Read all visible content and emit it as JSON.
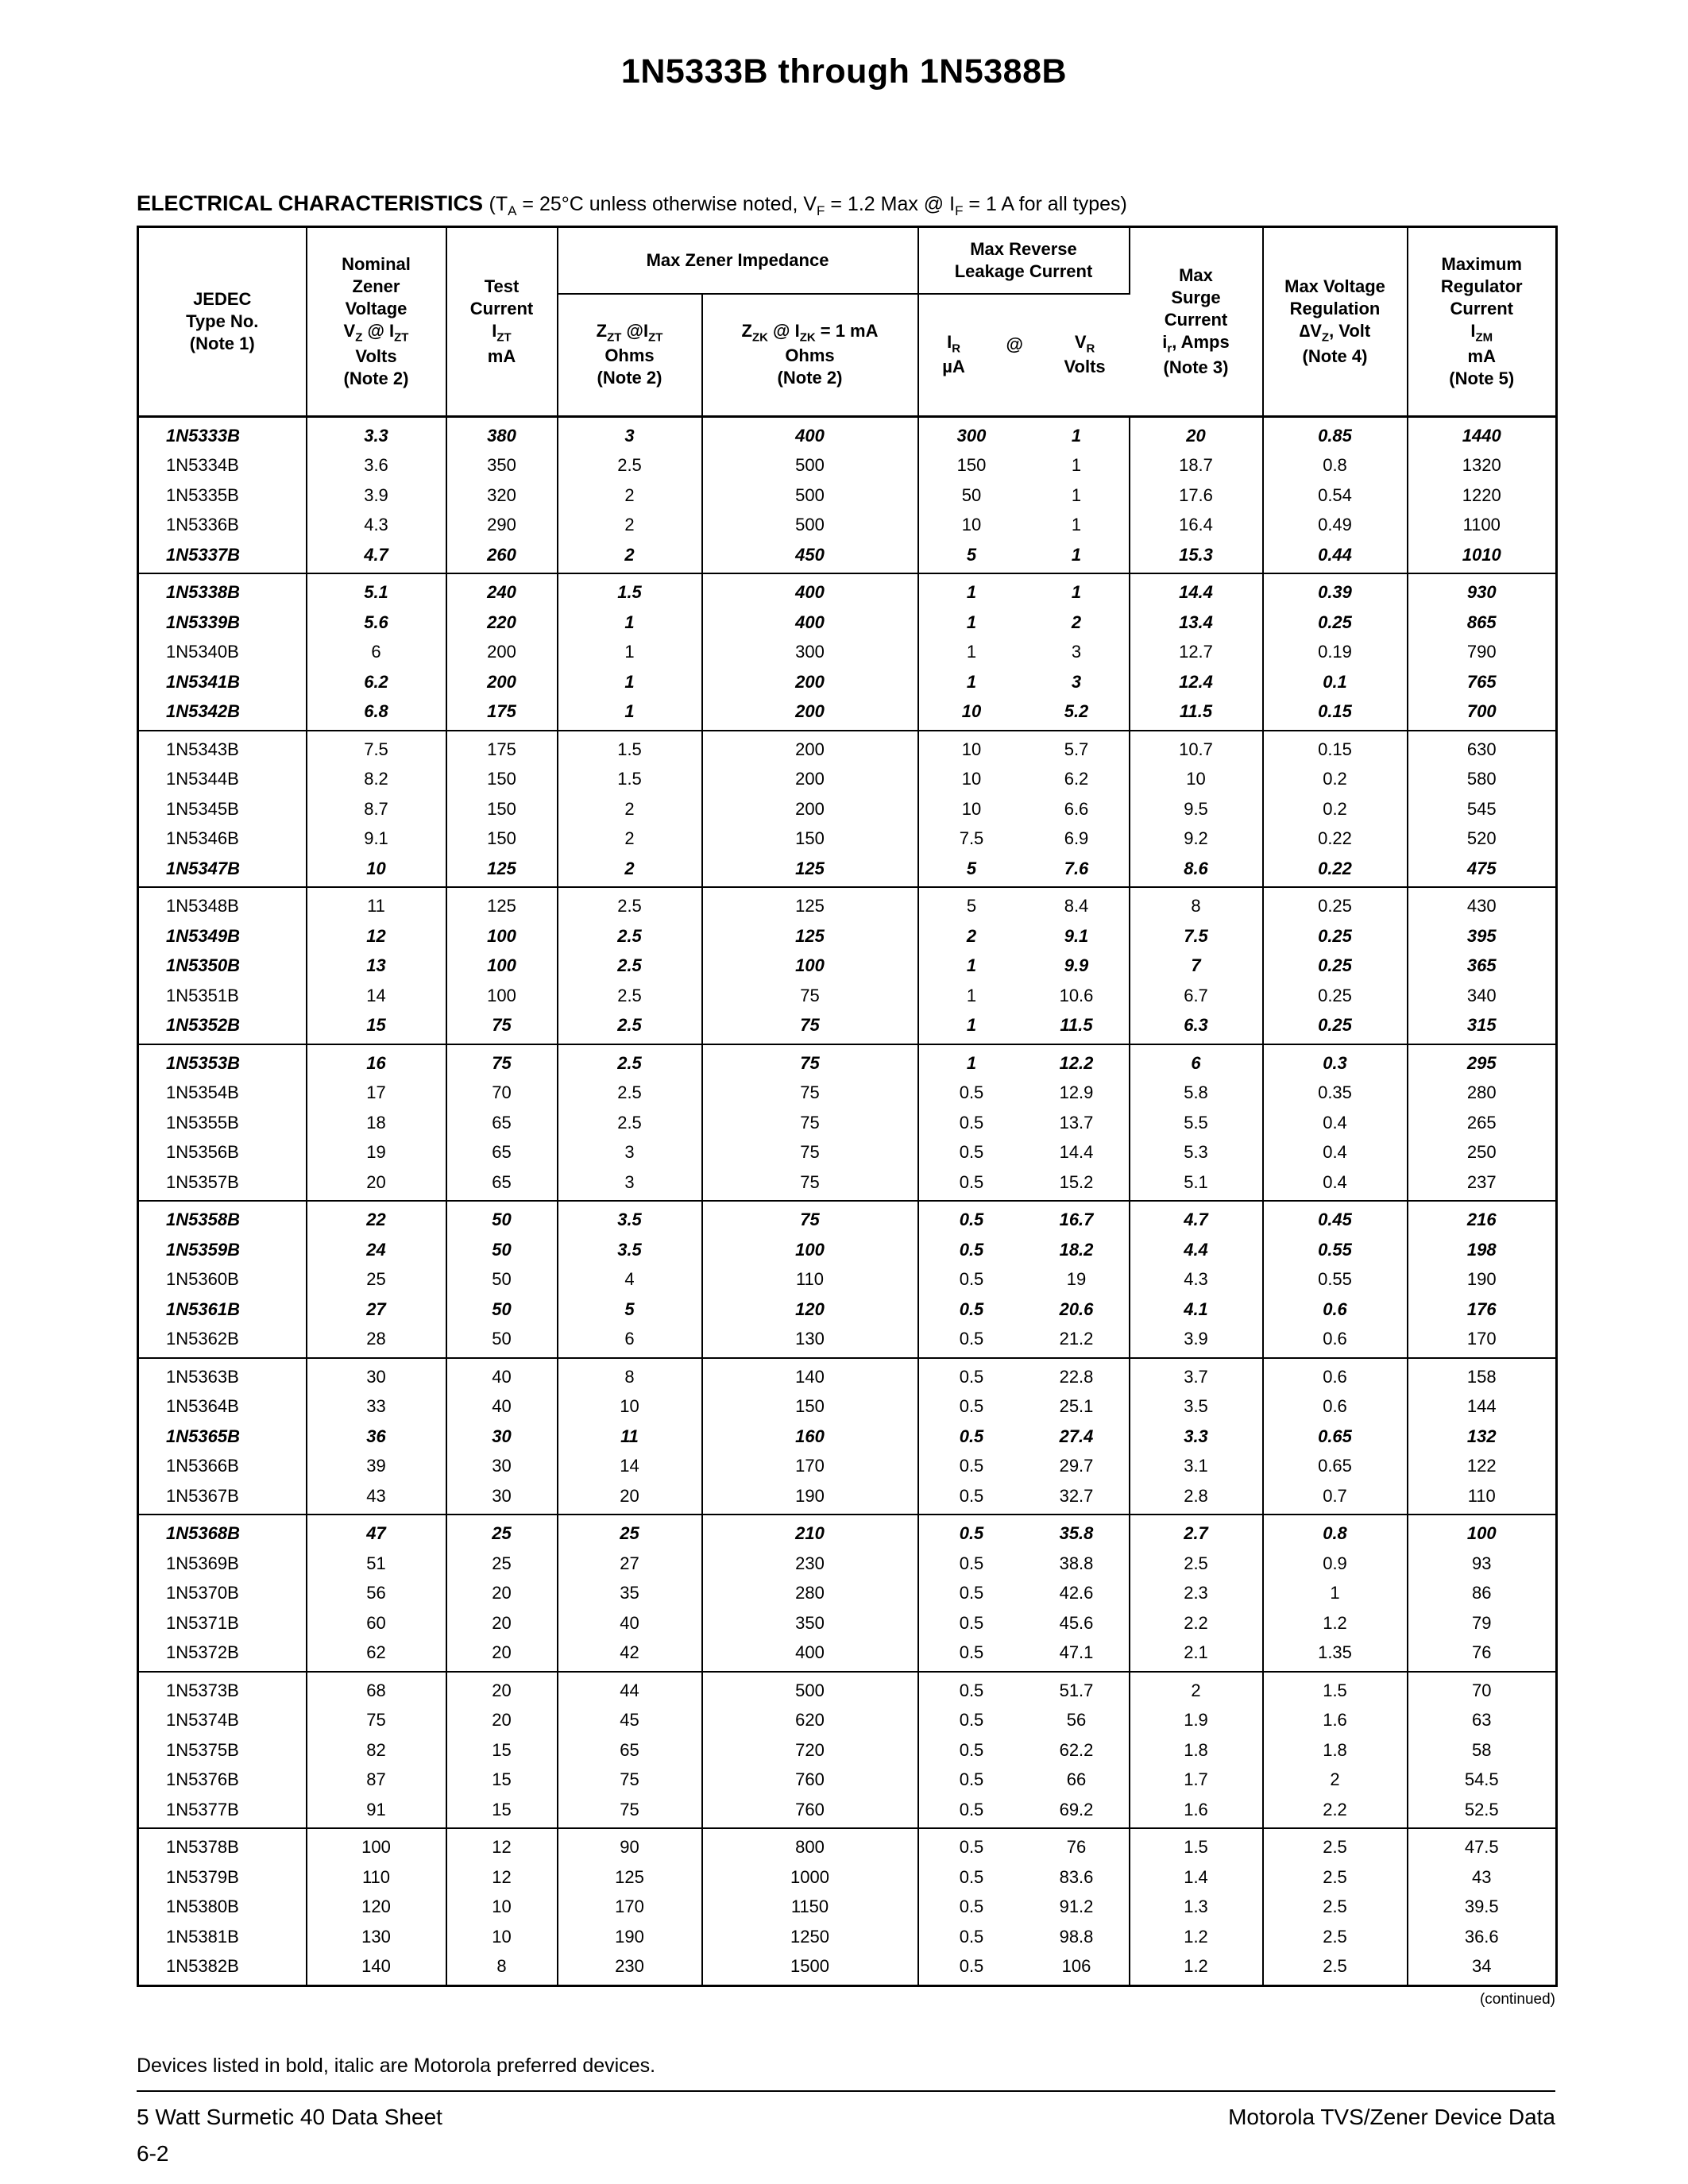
{
  "page": {
    "title": "1N5333B through 1N5388B",
    "section_heading": "ELECTRICAL CHARACTERISTICS ",
    "section_condition": "(T~A~ = 25°C unless otherwise noted, V~F~ = 1.2 Max @ I~F~ = 1 A for all types)",
    "continued": "(continued)",
    "note_bold": "Devices listed in bold, italic are Motorola preferred devices.",
    "footer_left": "5 Watt Surmetic 40 Data Sheet",
    "footer_right": "Motorola TVS/Zener Device Data",
    "page_number": "6-2"
  },
  "table": {
    "headers": {
      "type": [
        "JEDEC",
        "Type No.",
        "(Note 1)"
      ],
      "nominal": [
        "Nominal",
        "Zener",
        "Voltage",
        "V~Z~ @ I~ZT~",
        "Volts",
        "(Note 2)"
      ],
      "test": [
        "Test",
        "Current",
        "I~ZT~",
        "mA"
      ],
      "impedance_span": "Max Zener Impedance",
      "zzt": [
        "Z~ZT~ @I~ZT~",
        "Ohms",
        "(Note 2)"
      ],
      "zzk": [
        "Z~ZK~ @ I~ZK~ = 1 mA",
        "Ohms",
        "(Note 2)"
      ],
      "leakage_span": [
        "Max Reverse",
        "Leakage Current"
      ],
      "ir": [
        "I~R~",
        "µA"
      ],
      "at": "@",
      "vr": [
        "V~R~",
        "Volts"
      ],
      "surge": [
        "Max",
        "Surge",
        "Current",
        "i~r~, Amps",
        "(Note 3)"
      ],
      "regulation": [
        "Max Voltage",
        "Regulation",
        "∆V~Z~, Volt",
        "(Note 4)"
      ],
      "izm": [
        "Maximum",
        "Regulator",
        "Current",
        "I~ZM~",
        "mA",
        "(Note 5)"
      ]
    },
    "groups": [
      [
        {
          "type": "1N5333B",
          "preferred": true,
          "cells": [
            "3.3",
            "380",
            "3",
            "400",
            "300",
            "1",
            "20",
            "0.85",
            "1440"
          ]
        },
        {
          "type": "1N5334B",
          "preferred": false,
          "cells": [
            "3.6",
            "350",
            "2.5",
            "500",
            "150",
            "1",
            "18.7",
            "0.8",
            "1320"
          ]
        },
        {
          "type": "1N5335B",
          "preferred": false,
          "cells": [
            "3.9",
            "320",
            "2",
            "500",
            "50",
            "1",
            "17.6",
            "0.54",
            "1220"
          ]
        },
        {
          "type": "1N5336B",
          "preferred": false,
          "cells": [
            "4.3",
            "290",
            "2",
            "500",
            "10",
            "1",
            "16.4",
            "0.49",
            "1100"
          ]
        },
        {
          "type": "1N5337B",
          "preferred": true,
          "cells": [
            "4.7",
            "260",
            "2",
            "450",
            "5",
            "1",
            "15.3",
            "0.44",
            "1010"
          ]
        }
      ],
      [
        {
          "type": "1N5338B",
          "preferred": true,
          "cells": [
            "5.1",
            "240",
            "1.5",
            "400",
            "1",
            "1",
            "14.4",
            "0.39",
            "930"
          ]
        },
        {
          "type": "1N5339B",
          "preferred": true,
          "cells": [
            "5.6",
            "220",
            "1",
            "400",
            "1",
            "2",
            "13.4",
            "0.25",
            "865"
          ]
        },
        {
          "type": "1N5340B",
          "preferred": false,
          "cells": [
            "6",
            "200",
            "1",
            "300",
            "1",
            "3",
            "12.7",
            "0.19",
            "790"
          ]
        },
        {
          "type": "1N5341B",
          "preferred": true,
          "cells": [
            "6.2",
            "200",
            "1",
            "200",
            "1",
            "3",
            "12.4",
            "0.1",
            "765"
          ]
        },
        {
          "type": "1N5342B",
          "preferred": true,
          "cells": [
            "6.8",
            "175",
            "1",
            "200",
            "10",
            "5.2",
            "11.5",
            "0.15",
            "700"
          ]
        }
      ],
      [
        {
          "type": "1N5343B",
          "preferred": false,
          "cells": [
            "7.5",
            "175",
            "1.5",
            "200",
            "10",
            "5.7",
            "10.7",
            "0.15",
            "630"
          ]
        },
        {
          "type": "1N5344B",
          "preferred": false,
          "cells": [
            "8.2",
            "150",
            "1.5",
            "200",
            "10",
            "6.2",
            "10",
            "0.2",
            "580"
          ]
        },
        {
          "type": "1N5345B",
          "preferred": false,
          "cells": [
            "8.7",
            "150",
            "2",
            "200",
            "10",
            "6.6",
            "9.5",
            "0.2",
            "545"
          ]
        },
        {
          "type": "1N5346B",
          "preferred": false,
          "cells": [
            "9.1",
            "150",
            "2",
            "150",
            "7.5",
            "6.9",
            "9.2",
            "0.22",
            "520"
          ]
        },
        {
          "type": "1N5347B",
          "preferred": true,
          "cells": [
            "10",
            "125",
            "2",
            "125",
            "5",
            "7.6",
            "8.6",
            "0.22",
            "475"
          ]
        }
      ],
      [
        {
          "type": "1N5348B",
          "preferred": false,
          "cells": [
            "11",
            "125",
            "2.5",
            "125",
            "5",
            "8.4",
            "8",
            "0.25",
            "430"
          ]
        },
        {
          "type": "1N5349B",
          "preferred": true,
          "cells": [
            "12",
            "100",
            "2.5",
            "125",
            "2",
            "9.1",
            "7.5",
            "0.25",
            "395"
          ]
        },
        {
          "type": "1N5350B",
          "preferred": true,
          "cells": [
            "13",
            "100",
            "2.5",
            "100",
            "1",
            "9.9",
            "7",
            "0.25",
            "365"
          ]
        },
        {
          "type": "1N5351B",
          "preferred": false,
          "cells": [
            "14",
            "100",
            "2.5",
            "75",
            "1",
            "10.6",
            "6.7",
            "0.25",
            "340"
          ]
        },
        {
          "type": "1N5352B",
          "preferred": true,
          "cells": [
            "15",
            "75",
            "2.5",
            "75",
            "1",
            "11.5",
            "6.3",
            "0.25",
            "315"
          ]
        }
      ],
      [
        {
          "type": "1N5353B",
          "preferred": true,
          "cells": [
            "16",
            "75",
            "2.5",
            "75",
            "1",
            "12.2",
            "6",
            "0.3",
            "295"
          ]
        },
        {
          "type": "1N5354B",
          "preferred": false,
          "cells": [
            "17",
            "70",
            "2.5",
            "75",
            "0.5",
            "12.9",
            "5.8",
            "0.35",
            "280"
          ]
        },
        {
          "type": "1N5355B",
          "preferred": false,
          "cells": [
            "18",
            "65",
            "2.5",
            "75",
            "0.5",
            "13.7",
            "5.5",
            "0.4",
            "265"
          ]
        },
        {
          "type": "1N5356B",
          "preferred": false,
          "cells": [
            "19",
            "65",
            "3",
            "75",
            "0.5",
            "14.4",
            "5.3",
            "0.4",
            "250"
          ]
        },
        {
          "type": "1N5357B",
          "preferred": false,
          "cells": [
            "20",
            "65",
            "3",
            "75",
            "0.5",
            "15.2",
            "5.1",
            "0.4",
            "237"
          ]
        }
      ],
      [
        {
          "type": "1N5358B",
          "preferred": true,
          "cells": [
            "22",
            "50",
            "3.5",
            "75",
            "0.5",
            "16.7",
            "4.7",
            "0.45",
            "216"
          ]
        },
        {
          "type": "1N5359B",
          "preferred": true,
          "cells": [
            "24",
            "50",
            "3.5",
            "100",
            "0.5",
            "18.2",
            "4.4",
            "0.55",
            "198"
          ]
        },
        {
          "type": "1N5360B",
          "preferred": false,
          "cells": [
            "25",
            "50",
            "4",
            "110",
            "0.5",
            "19",
            "4.3",
            "0.55",
            "190"
          ]
        },
        {
          "type": "1N5361B",
          "preferred": true,
          "cells": [
            "27",
            "50",
            "5",
            "120",
            "0.5",
            "20.6",
            "4.1",
            "0.6",
            "176"
          ]
        },
        {
          "type": "1N5362B",
          "preferred": false,
          "cells": [
            "28",
            "50",
            "6",
            "130",
            "0.5",
            "21.2",
            "3.9",
            "0.6",
            "170"
          ]
        }
      ],
      [
        {
          "type": "1N5363B",
          "preferred": false,
          "cells": [
            "30",
            "40",
            "8",
            "140",
            "0.5",
            "22.8",
            "3.7",
            "0.6",
            "158"
          ]
        },
        {
          "type": "1N5364B",
          "preferred": false,
          "cells": [
            "33",
            "40",
            "10",
            "150",
            "0.5",
            "25.1",
            "3.5",
            "0.6",
            "144"
          ]
        },
        {
          "type": "1N5365B",
          "preferred": true,
          "cells": [
            "36",
            "30",
            "11",
            "160",
            "0.5",
            "27.4",
            "3.3",
            "0.65",
            "132"
          ]
        },
        {
          "type": "1N5366B",
          "preferred": false,
          "cells": [
            "39",
            "30",
            "14",
            "170",
            "0.5",
            "29.7",
            "3.1",
            "0.65",
            "122"
          ]
        },
        {
          "type": "1N5367B",
          "preferred": false,
          "cells": [
            "43",
            "30",
            "20",
            "190",
            "0.5",
            "32.7",
            "2.8",
            "0.7",
            "110"
          ]
        }
      ],
      [
        {
          "type": "1N5368B",
          "preferred": true,
          "cells": [
            "47",
            "25",
            "25",
            "210",
            "0.5",
            "35.8",
            "2.7",
            "0.8",
            "100"
          ]
        },
        {
          "type": "1N5369B",
          "preferred": false,
          "cells": [
            "51",
            "25",
            "27",
            "230",
            "0.5",
            "38.8",
            "2.5",
            "0.9",
            "93"
          ]
        },
        {
          "type": "1N5370B",
          "preferred": false,
          "cells": [
            "56",
            "20",
            "35",
            "280",
            "0.5",
            "42.6",
            "2.3",
            "1",
            "86"
          ]
        },
        {
          "type": "1N5371B",
          "preferred": false,
          "cells": [
            "60",
            "20",
            "40",
            "350",
            "0.5",
            "45.6",
            "2.2",
            "1.2",
            "79"
          ]
        },
        {
          "type": "1N5372B",
          "preferred": false,
          "cells": [
            "62",
            "20",
            "42",
            "400",
            "0.5",
            "47.1",
            "2.1",
            "1.35",
            "76"
          ]
        }
      ],
      [
        {
          "type": "1N5373B",
          "preferred": false,
          "cells": [
            "68",
            "20",
            "44",
            "500",
            "0.5",
            "51.7",
            "2",
            "1.5",
            "70"
          ]
        },
        {
          "type": "1N5374B",
          "preferred": false,
          "cells": [
            "75",
            "20",
            "45",
            "620",
            "0.5",
            "56",
            "1.9",
            "1.6",
            "63"
          ]
        },
        {
          "type": "1N5375B",
          "preferred": false,
          "cells": [
            "82",
            "15",
            "65",
            "720",
            "0.5",
            "62.2",
            "1.8",
            "1.8",
            "58"
          ]
        },
        {
          "type": "1N5376B",
          "preferred": false,
          "cells": [
            "87",
            "15",
            "75",
            "760",
            "0.5",
            "66",
            "1.7",
            "2",
            "54.5"
          ]
        },
        {
          "type": "1N5377B",
          "preferred": false,
          "cells": [
            "91",
            "15",
            "75",
            "760",
            "0.5",
            "69.2",
            "1.6",
            "2.2",
            "52.5"
          ]
        }
      ],
      [
        {
          "type": "1N5378B",
          "preferred": false,
          "cells": [
            "100",
            "12",
            "90",
            "800",
            "0.5",
            "76",
            "1.5",
            "2.5",
            "47.5"
          ]
        },
        {
          "type": "1N5379B",
          "preferred": false,
          "cells": [
            "110",
            "12",
            "125",
            "1000",
            "0.5",
            "83.6",
            "1.4",
            "2.5",
            "43"
          ]
        },
        {
          "type": "1N5380B",
          "preferred": false,
          "cells": [
            "120",
            "10",
            "170",
            "1150",
            "0.5",
            "91.2",
            "1.3",
            "2.5",
            "39.5"
          ]
        },
        {
          "type": "1N5381B",
          "preferred": false,
          "cells": [
            "130",
            "10",
            "190",
            "1250",
            "0.5",
            "98.8",
            "1.2",
            "2.5",
            "36.6"
          ]
        },
        {
          "type": "1N5382B",
          "preferred": false,
          "cells": [
            "140",
            "8",
            "230",
            "1500",
            "0.5",
            "106",
            "1.2",
            "2.5",
            "34"
          ]
        }
      ]
    ]
  }
}
